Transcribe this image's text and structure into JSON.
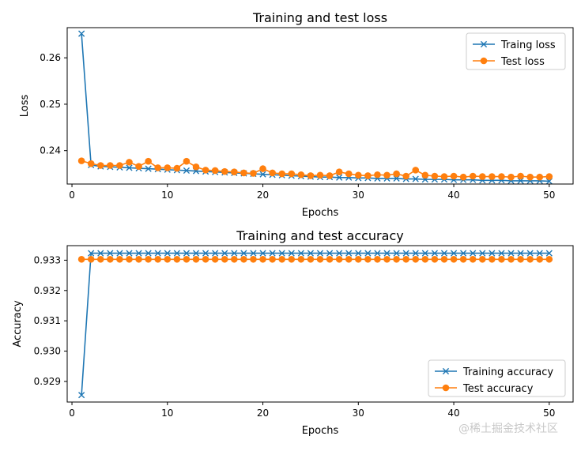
{
  "chart_data": [
    {
      "type": "line",
      "title": "Training and test loss",
      "xlabel": "Epochs",
      "ylabel": "Loss",
      "xlim": [
        -0.5,
        52.5
      ],
      "ylim": [
        0.2328,
        0.2665
      ],
      "xticks": [
        0,
        10,
        20,
        30,
        40,
        50
      ],
      "yticks": [
        0.24,
        0.25,
        0.26
      ],
      "ytick_labels": [
        "0.24",
        "0.25",
        "0.26"
      ],
      "grid": false,
      "legend_position": "top-right",
      "x": [
        1,
        2,
        3,
        4,
        5,
        6,
        7,
        8,
        9,
        10,
        11,
        12,
        13,
        14,
        15,
        16,
        17,
        18,
        19,
        20,
        21,
        22,
        23,
        24,
        25,
        26,
        27,
        28,
        29,
        30,
        31,
        32,
        33,
        34,
        35,
        36,
        37,
        38,
        39,
        40,
        41,
        42,
        43,
        44,
        45,
        46,
        47,
        48,
        49,
        50
      ],
      "series": [
        {
          "name": "Traing loss",
          "color": "#1f77b4",
          "marker": "x",
          "values": [
            0.2652,
            0.2369,
            0.2366,
            0.2365,
            0.2364,
            0.2363,
            0.2362,
            0.2361,
            0.236,
            0.2359,
            0.2358,
            0.2357,
            0.2356,
            0.2355,
            0.2354,
            0.2353,
            0.2352,
            0.2351,
            0.235,
            0.2349,
            0.2348,
            0.2347,
            0.2346,
            0.2345,
            0.2344,
            0.2343,
            0.2343,
            0.2342,
            0.2342,
            0.2341,
            0.2341,
            0.234,
            0.234,
            0.234,
            0.2339,
            0.2339,
            0.2338,
            0.2338,
            0.2338,
            0.2337,
            0.2337,
            0.2337,
            0.2336,
            0.2336,
            0.2336,
            0.2335,
            0.2335,
            0.2335,
            0.2335,
            0.2334
          ]
        },
        {
          "name": "Test loss",
          "color": "#ff7f0e",
          "marker": "o",
          "values": [
            0.2378,
            0.2372,
            0.2368,
            0.2368,
            0.2368,
            0.2375,
            0.2366,
            0.2377,
            0.2363,
            0.2363,
            0.2362,
            0.2377,
            0.2365,
            0.2358,
            0.2357,
            0.2355,
            0.2354,
            0.2352,
            0.2351,
            0.2361,
            0.2352,
            0.235,
            0.235,
            0.2348,
            0.2346,
            0.2347,
            0.2346,
            0.2354,
            0.235,
            0.2347,
            0.2346,
            0.2348,
            0.2347,
            0.235,
            0.2345,
            0.2358,
            0.2347,
            0.2345,
            0.2344,
            0.2345,
            0.2343,
            0.2345,
            0.2344,
            0.2344,
            0.2344,
            0.2343,
            0.2345,
            0.2343,
            0.2343,
            0.2344
          ]
        }
      ]
    },
    {
      "type": "line",
      "title": "Training and test accuracy",
      "xlabel": "Epochs",
      "ylabel": "Accuracy",
      "xlim": [
        -0.5,
        52.5
      ],
      "ylim": [
        0.92832,
        0.93348
      ],
      "xticks": [
        0,
        10,
        20,
        30,
        40,
        50
      ],
      "yticks": [
        0.929,
        0.93,
        0.931,
        0.932,
        0.933
      ],
      "ytick_labels": [
        "0.929",
        "0.930",
        "0.931",
        "0.932",
        "0.933"
      ],
      "grid": false,
      "legend_position": "lower-right",
      "x": [
        1,
        2,
        3,
        4,
        5,
        6,
        7,
        8,
        9,
        10,
        11,
        12,
        13,
        14,
        15,
        16,
        17,
        18,
        19,
        20,
        21,
        22,
        23,
        24,
        25,
        26,
        27,
        28,
        29,
        30,
        31,
        32,
        33,
        34,
        35,
        36,
        37,
        38,
        39,
        40,
        41,
        42,
        43,
        44,
        45,
        46,
        47,
        48,
        49,
        50
      ],
      "series": [
        {
          "name": "Training accuracy",
          "color": "#1f77b4",
          "marker": "x",
          "values": [
            0.92855,
            0.93323,
            0.93323,
            0.93323,
            0.93323,
            0.93323,
            0.93323,
            0.93323,
            0.93323,
            0.93323,
            0.93323,
            0.93323,
            0.93323,
            0.93323,
            0.93323,
            0.93323,
            0.93323,
            0.93323,
            0.93323,
            0.93323,
            0.93323,
            0.93323,
            0.93323,
            0.93323,
            0.93323,
            0.93323,
            0.93323,
            0.93323,
            0.93323,
            0.93323,
            0.93323,
            0.93323,
            0.93323,
            0.93323,
            0.93323,
            0.93323,
            0.93323,
            0.93323,
            0.93323,
            0.93323,
            0.93323,
            0.93323,
            0.93323,
            0.93323,
            0.93323,
            0.93323,
            0.93323,
            0.93323,
            0.93323,
            0.93323
          ]
        },
        {
          "name": "Test accuracy",
          "color": "#ff7f0e",
          "marker": "o",
          "values": [
            0.93303,
            0.93303,
            0.93303,
            0.93303,
            0.93303,
            0.93303,
            0.93303,
            0.93303,
            0.93303,
            0.93303,
            0.93303,
            0.93303,
            0.93303,
            0.93303,
            0.93303,
            0.93303,
            0.93303,
            0.93303,
            0.93303,
            0.93303,
            0.93303,
            0.93303,
            0.93303,
            0.93303,
            0.93303,
            0.93303,
            0.93303,
            0.93303,
            0.93303,
            0.93303,
            0.93303,
            0.93303,
            0.93303,
            0.93303,
            0.93303,
            0.93303,
            0.93303,
            0.93303,
            0.93303,
            0.93303,
            0.93303,
            0.93303,
            0.93303,
            0.93303,
            0.93303,
            0.93303,
            0.93303,
            0.93303,
            0.93303,
            0.93303
          ]
        }
      ]
    }
  ],
  "watermark": "@稀土掘金技术社区"
}
